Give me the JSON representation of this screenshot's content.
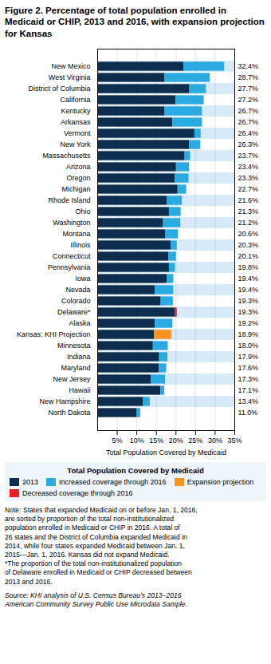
{
  "chart_data": {
    "type": "bar",
    "orientation": "horizontal",
    "stacked": true,
    "title": "Figure 2. Percentage of total population enrolled in Medicaid or CHIP, 2013 and 2016, with expansion projection for Kansas",
    "xlabel": "Total Population Covered by Medicaid",
    "categories": [
      "New Mexico",
      "West Virginia",
      "District of Columbia",
      "California",
      "Kentucky",
      "Arkansas",
      "Vermont",
      "New York",
      "Massachusetts",
      "Arizona",
      "Oregon",
      "Michigan",
      "Rhode Island",
      "Ohio",
      "Washington",
      "Montana",
      "Illinois",
      "Connecticut",
      "Pennsylvania",
      "Iowa",
      "Nevada",
      "Colorado",
      "Delaware*",
      "Alaska",
      "Kansas: KHI Projection",
      "Minnesota",
      "Indiana",
      "Maryland",
      "New Jersey",
      "Hawaii",
      "New Hampshire",
      "North Dakota"
    ],
    "series": [
      {
        "name": "2013",
        "color": "#0d2d4e",
        "values": [
          22.0,
          17.2,
          23.5,
          20.0,
          17.2,
          19.2,
          24.8,
          23.5,
          22.3,
          20.1,
          19.8,
          20.5,
          17.8,
          18.3,
          16.8,
          17.3,
          18.8,
          18.2,
          18.3,
          17.7,
          14.7,
          16.2,
          19.8,
          14.7,
          14.5,
          14.2,
          15.8,
          15.7,
          13.7,
          16.1,
          11.6,
          10.1
        ]
      },
      {
        "name": "Increased coverage through 2016",
        "color": "#29abe2",
        "values": [
          10.4,
          11.5,
          4.2,
          7.2,
          9.5,
          7.5,
          1.6,
          2.8,
          1.4,
          3.3,
          3.5,
          2.2,
          3.8,
          3.0,
          4.4,
          3.3,
          1.5,
          1.9,
          1.5,
          1.7,
          4.7,
          3.1,
          0.0,
          4.5,
          0.0,
          3.8,
          2.1,
          1.9,
          3.6,
          1.0,
          1.8,
          0.9
        ]
      },
      {
        "name": "Expansion projection",
        "color": "#f7941d",
        "values": [
          0.0,
          0.0,
          0.0,
          0.0,
          0.0,
          0.0,
          0.0,
          0.0,
          0.0,
          0.0,
          0.0,
          0.0,
          0.0,
          0.0,
          0.0,
          0.0,
          0.0,
          0.0,
          0.0,
          0.0,
          0.0,
          0.0,
          0.0,
          0.0,
          4.4,
          0.0,
          0.0,
          0.0,
          0.0,
          0.0,
          0.0,
          0.0
        ]
      },
      {
        "name": "Decreased coverage through 2016",
        "color": "#ed1c24",
        "values": [
          0.0,
          0.0,
          0.0,
          0.0,
          0.0,
          0.0,
          0.0,
          0.0,
          0.0,
          0.0,
          0.0,
          0.0,
          0.0,
          0.0,
          0.0,
          0.0,
          0.0,
          0.0,
          0.0,
          0.0,
          0.0,
          0.0,
          0.5,
          0.0,
          0.0,
          0.0,
          0.0,
          0.0,
          0.0,
          0.0,
          0.0,
          0.0
        ]
      }
    ],
    "totals": {
      "values": [
        32.4,
        28.7,
        27.7,
        27.2,
        26.7,
        26.7,
        26.4,
        26.3,
        23.7,
        23.4,
        23.3,
        22.7,
        21.6,
        21.3,
        21.2,
        20.6,
        20.3,
        20.1,
        19.8,
        19.4,
        19.4,
        19.3,
        19.3,
        19.2,
        18.9,
        18.0,
        17.9,
        17.6,
        17.3,
        17.1,
        13.4,
        11.0
      ],
      "value_labels": [
        "32.4%",
        "28.7%",
        "27.7%",
        "27.2%",
        "26.7%",
        "26.7%",
        "26.4%",
        "26.3%",
        "23.7%",
        "23.4%",
        "23.3%",
        "22.7%",
        "21.6%",
        "21.3%",
        "21.2%",
        "20.6%",
        "20.3%",
        "20.1%",
        "19.8%",
        "19.4%",
        "19.4%",
        "19.3%",
        "19.3%",
        "19.2%",
        "18.9%",
        "18.0%",
        "17.9%",
        "17.6%",
        "17.3%",
        "17.1%",
        "13.4%",
        "11.0%"
      ]
    },
    "xlim": [
      0,
      35
    ],
    "xticks": [
      {
        "value": 5,
        "label": "5%"
      },
      {
        "value": 10,
        "label": "10%"
      },
      {
        "value": 15,
        "label": "15%"
      },
      {
        "value": 20,
        "label": "20%"
      },
      {
        "value": 25,
        "label": "25%"
      },
      {
        "value": 30,
        "label": "30%"
      },
      {
        "value": 35,
        "label": "35%"
      }
    ],
    "grid": true,
    "legend": "bottom",
    "note": "Note: States that expanded Medicaid on or before Jan. 1, 2016,\nare sorted by proportion of the total non-institutionalized\npopulation enrolled in Medicaid or CHIP in 2016. A total of\n26 states and the District of Columbia expanded Medicaid in\n2014, while four states expanded Medicaid between Jan. 1,\n2015—Jan. 1, 2016. Kansas did not expand Medicaid.\n*The proportion of the total non-institutionalized population\nof Delaware enrolled in Medicaid or CHIP decreased between\n2013 and 2016.",
    "source": "Source: KHI analysis of U.S. Census Bureau’s 2013–2016\nAmerican Community Survey Public Use Microdata Sample."
  }
}
